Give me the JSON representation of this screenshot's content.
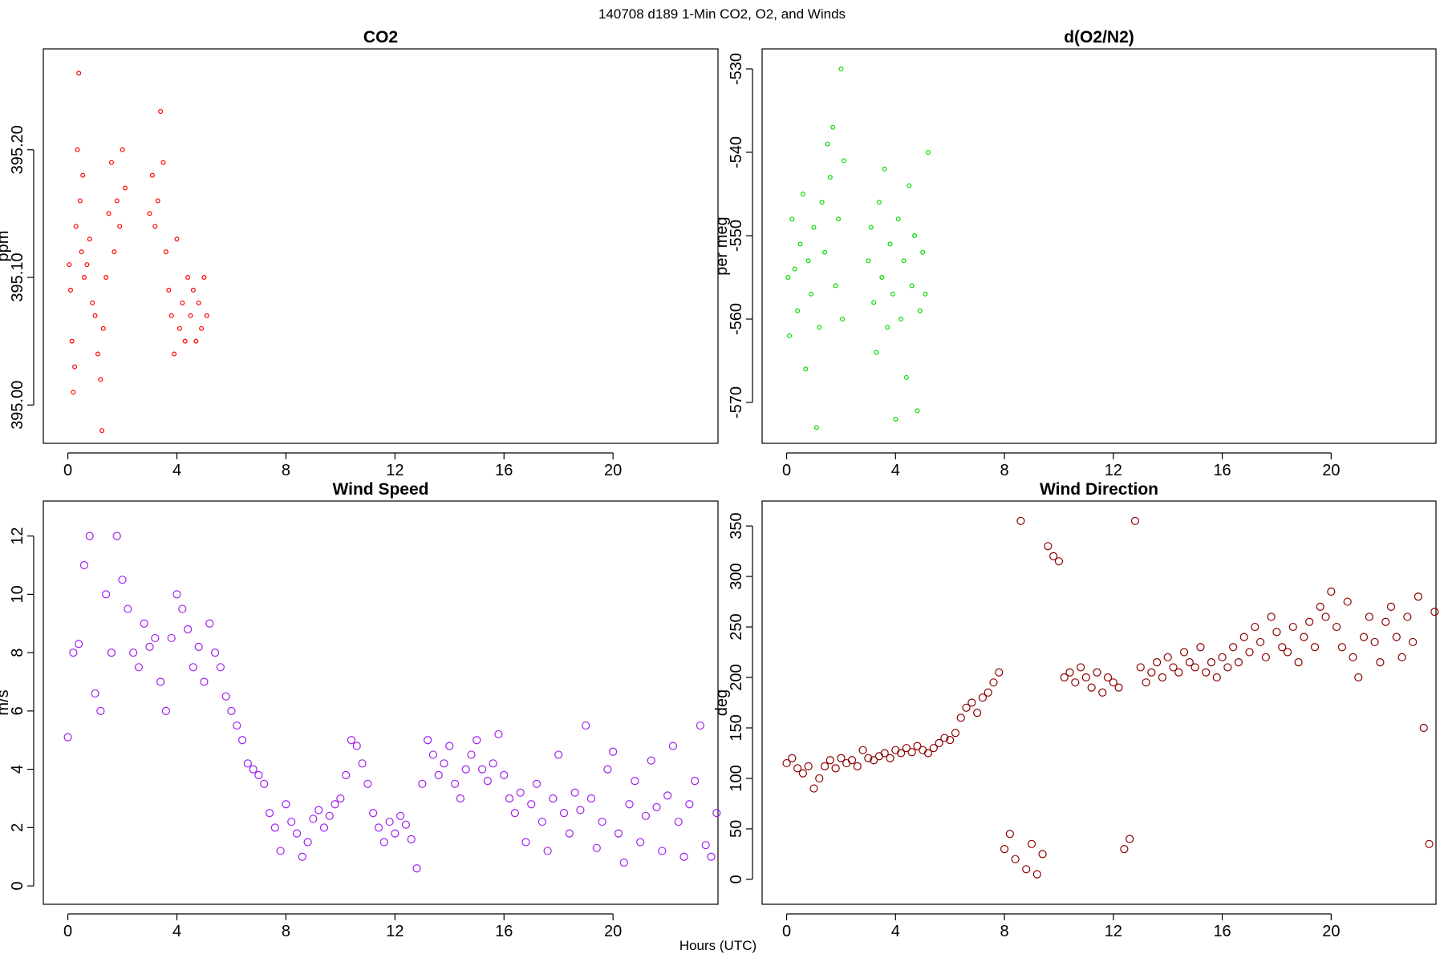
{
  "title": "140708   d189   1-Min CO2, O2, and Winds",
  "x_label": "Hours (UTC)",
  "chart_data": [
    {
      "type": "scatter",
      "title": "CO2",
      "y_label": "ppm",
      "color": "#ff0000",
      "xlim": [
        -0.9,
        23.85
      ],
      "xticks": [
        0,
        4,
        8,
        12,
        16,
        20
      ],
      "ylim": [
        394.97,
        395.279
      ],
      "yticks": [
        {
          "value": 395,
          "label": "395.00"
        },
        {
          "value": 395.1,
          "label": "395.10"
        },
        {
          "value": 395.2,
          "label": "395.20"
        }
      ],
      "x": [
        0.05,
        0.1,
        0.15,
        0.2,
        0.25,
        0.3,
        0.35,
        0.4,
        0.45,
        0.5,
        0.55,
        0.6,
        0.7,
        0.8,
        0.9,
        1.0,
        1.1,
        1.2,
        1.25,
        1.3,
        1.4,
        1.5,
        1.6,
        1.7,
        1.8,
        1.9,
        2.0,
        2.1,
        3.0,
        3.1,
        3.2,
        3.3,
        3.4,
        3.5,
        3.6,
        3.7,
        3.8,
        3.9,
        4.0,
        4.1,
        4.2,
        4.3,
        4.4,
        4.5,
        4.6,
        4.7,
        4.8,
        4.9,
        5.0,
        5.1
      ],
      "values": [
        395.11,
        395.09,
        395.05,
        395.01,
        395.03,
        395.14,
        395.2,
        395.26,
        395.16,
        395.12,
        395.18,
        395.1,
        395.11,
        395.13,
        395.08,
        395.07,
        395.04,
        395.02,
        394.98,
        395.06,
        395.1,
        395.15,
        395.19,
        395.12,
        395.16,
        395.14,
        395.2,
        395.17,
        395.15,
        395.18,
        395.14,
        395.16,
        395.23,
        395.19,
        395.12,
        395.09,
        395.07,
        395.04,
        395.13,
        395.06,
        395.08,
        395.05,
        395.1,
        395.07,
        395.09,
        395.05,
        395.08,
        395.06,
        395.1,
        395.07
      ]
    },
    {
      "type": "scatter",
      "title": "d(O2/N2)",
      "y_label": "per meg",
      "color": "#00dd00",
      "xlim": [
        -0.9,
        23.85
      ],
      "xticks": [
        0,
        4,
        8,
        12,
        16,
        20
      ],
      "ylim": [
        -574.9,
        -527.6
      ],
      "yticks": [
        -570,
        -560,
        -550,
        -540,
        -530
      ],
      "x": [
        0.05,
        0.1,
        0.2,
        0.3,
        0.4,
        0.5,
        0.6,
        0.7,
        0.8,
        0.9,
        1.0,
        1.1,
        1.2,
        1.3,
        1.4,
        1.5,
        1.6,
        1.7,
        1.8,
        1.9,
        2.0,
        2.05,
        2.1,
        3.0,
        3.1,
        3.2,
        3.3,
        3.4,
        3.5,
        3.6,
        3.7,
        3.8,
        3.9,
        4.0,
        4.1,
        4.2,
        4.3,
        4.4,
        4.5,
        4.6,
        4.7,
        4.8,
        4.9,
        5.0,
        5.1,
        5.2
      ],
      "values": [
        -555,
        -562,
        -548,
        -554,
        -559,
        -551,
        -545,
        -566,
        -553,
        -557,
        -549,
        -573,
        -561,
        -546,
        -552,
        -539,
        -543,
        -537,
        -556,
        -548,
        -530,
        -560,
        -541,
        -553,
        -549,
        -558,
        -564,
        -546,
        -555,
        -542,
        -561,
        -551,
        -557,
        -572,
        -548,
        -560,
        -553,
        -567,
        -544,
        -556,
        -550,
        -571,
        -559,
        -552,
        -557,
        -540
      ]
    },
    {
      "type": "scatter",
      "title": "Wind Speed",
      "y_label": "m/s",
      "color": "#a020f0",
      "xlim": [
        -0.9,
        23.85
      ],
      "xticks": [
        0,
        4,
        8,
        12,
        16,
        20
      ],
      "ylim": [
        -0.63,
        13.2
      ],
      "yticks": [
        0,
        2,
        4,
        6,
        8,
        10,
        12
      ],
      "x": [
        0,
        0.2,
        0.4,
        0.6,
        0.8,
        1,
        1.2,
        1.4,
        1.6,
        1.8,
        2,
        2.2,
        2.4,
        2.6,
        2.8,
        3,
        3.2,
        3.4,
        3.6,
        3.8,
        4,
        4.2,
        4.4,
        4.6,
        4.8,
        5,
        5.2,
        5.4,
        5.6,
        5.8,
        6,
        6.2,
        6.4,
        6.6,
        6.8,
        7,
        7.2,
        7.4,
        7.6,
        7.8,
        8,
        8.2,
        8.4,
        8.6,
        8.8,
        9,
        9.2,
        9.4,
        9.6,
        9.8,
        10,
        10.2,
        10.4,
        10.6,
        10.8,
        11,
        11.2,
        11.4,
        11.6,
        11.8,
        12,
        12.2,
        12.4,
        12.6,
        12.8,
        13,
        13.2,
        13.4,
        13.6,
        13.8,
        14,
        14.2,
        14.4,
        14.6,
        14.8,
        15,
        15.2,
        15.4,
        15.6,
        15.8,
        16,
        16.2,
        16.4,
        16.6,
        16.8,
        17,
        17.2,
        17.4,
        17.6,
        17.8,
        18,
        18.2,
        18.4,
        18.6,
        18.8,
        19,
        19.2,
        19.4,
        19.6,
        19.8,
        20,
        20.2,
        20.4,
        20.6,
        20.8,
        21,
        21.2,
        21.4,
        21.6,
        21.8,
        22,
        22.2,
        22.4,
        22.6,
        22.8,
        23,
        23.2,
        23.4,
        23.6,
        23.8
      ],
      "values": [
        5.1,
        8,
        8.3,
        11,
        12,
        6.6,
        6,
        10,
        8,
        12,
        10.5,
        9.5,
        8,
        7.5,
        9,
        8.2,
        8.5,
        7,
        6,
        8.5,
        10,
        9.5,
        8.8,
        7.5,
        8.2,
        7,
        9,
        8,
        7.5,
        6.5,
        6,
        5.5,
        5,
        4.2,
        4,
        3.8,
        3.5,
        2.5,
        2,
        1.2,
        2.8,
        2.2,
        1.8,
        1,
        1.5,
        2.3,
        2.6,
        2,
        2.4,
        2.8,
        3,
        3.8,
        5,
        4.8,
        4.2,
        3.5,
        2.5,
        2,
        1.5,
        2.2,
        1.8,
        2.4,
        2.1,
        1.6,
        0.6,
        3.5,
        5,
        4.5,
        3.8,
        4.2,
        4.8,
        3.5,
        3,
        4,
        4.5,
        5,
        4,
        3.6,
        4.2,
        5.2,
        3.8,
        3,
        2.5,
        3.2,
        1.5,
        2.8,
        3.5,
        2.2,
        1.2,
        3,
        4.5,
        2.5,
        1.8,
        3.2,
        2.6,
        5.5,
        3,
        1.3,
        2.2,
        4,
        4.6,
        1.8,
        0.8,
        2.8,
        3.6,
        1.5,
        2.4,
        4.3,
        2.7,
        1.2,
        3.1,
        4.8,
        2.2,
        1,
        2.8,
        3.6,
        5.5,
        1.4,
        1,
        2.5
      ]
    },
    {
      "type": "scatter",
      "title": "Wind Direction",
      "y_label": "deg",
      "color": "#8b0000",
      "xlim": [
        -0.9,
        23.85
      ],
      "xticks": [
        0,
        4,
        8,
        12,
        16,
        20
      ],
      "ylim": [
        -24.7,
        374.7
      ],
      "yticks": [
        0,
        50,
        100,
        150,
        200,
        250,
        300,
        350
      ],
      "x": [
        0,
        0.2,
        0.4,
        0.6,
        0.8,
        1,
        1.2,
        1.4,
        1.6,
        1.8,
        2,
        2.2,
        2.4,
        2.6,
        2.8,
        3,
        3.2,
        3.4,
        3.6,
        3.8,
        4,
        4.2,
        4.4,
        4.6,
        4.8,
        5,
        5.2,
        5.4,
        5.6,
        5.8,
        6,
        6.2,
        6.4,
        6.6,
        6.8,
        7,
        7.2,
        7.4,
        7.6,
        7.8,
        8,
        8.2,
        8.4,
        8.6,
        8.8,
        9,
        9.2,
        9.4,
        9.6,
        9.8,
        10,
        10.2,
        10.4,
        10.6,
        10.8,
        11,
        11.2,
        11.4,
        11.6,
        11.8,
        12,
        12.2,
        12.4,
        12.6,
        12.8,
        13,
        13.2,
        13.4,
        13.6,
        13.8,
        14,
        14.2,
        14.4,
        14.6,
        14.8,
        15,
        15.2,
        15.4,
        15.6,
        15.8,
        16,
        16.2,
        16.4,
        16.6,
        16.8,
        17,
        17.2,
        17.4,
        17.6,
        17.8,
        18,
        18.2,
        18.4,
        18.6,
        18.8,
        19,
        19.2,
        19.4,
        19.6,
        19.8,
        20,
        20.2,
        20.4,
        20.6,
        20.8,
        21,
        21.2,
        21.4,
        21.6,
        21.8,
        22,
        22.2,
        22.4,
        22.6,
        22.8,
        23,
        23.2,
        23.4,
        23.6,
        23.8
      ],
      "values": [
        115,
        120,
        110,
        105,
        112,
        90,
        100,
        112,
        118,
        110,
        120,
        115,
        118,
        112,
        128,
        120,
        118,
        122,
        125,
        120,
        128,
        125,
        130,
        126,
        132,
        128,
        125,
        130,
        135,
        140,
        138,
        145,
        160,
        170,
        175,
        165,
        180,
        185,
        195,
        205,
        30,
        45,
        20,
        355,
        10,
        35,
        5,
        25,
        330,
        320,
        315,
        200,
        205,
        195,
        210,
        200,
        190,
        205,
        185,
        200,
        195,
        190,
        30,
        40,
        355,
        210,
        195,
        205,
        215,
        200,
        220,
        210,
        205,
        225,
        215,
        210,
        230,
        205,
        215,
        200,
        220,
        210,
        230,
        215,
        240,
        225,
        250,
        235,
        220,
        260,
        245,
        230,
        225,
        250,
        215,
        240,
        255,
        230,
        270,
        260,
        285,
        250,
        230,
        275,
        220,
        200,
        240,
        260,
        235,
        215,
        255,
        270,
        240,
        220,
        260,
        235,
        280,
        150,
        35,
        265
      ]
    }
  ]
}
